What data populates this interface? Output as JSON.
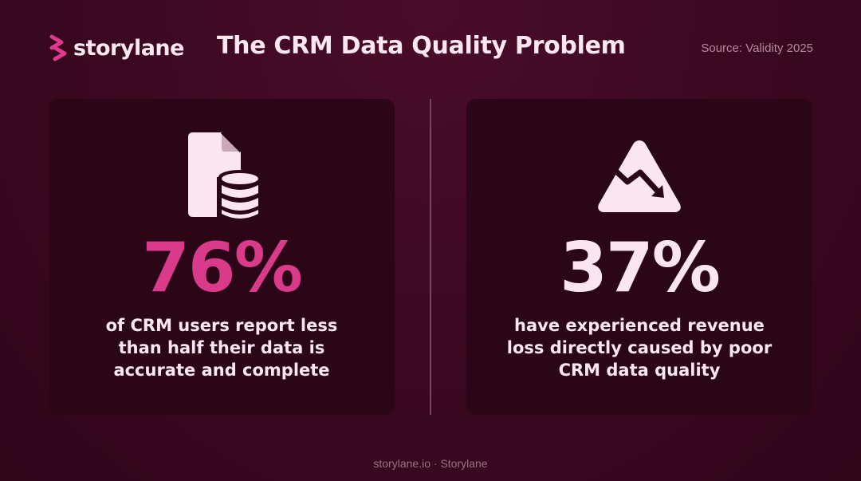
{
  "header": {
    "logo_text": "storylane",
    "title": "The CRM Data Quality Problem",
    "source": "Source: Validity 2025"
  },
  "cards": [
    {
      "icon": "document-database-icon",
      "stat": "76%",
      "stat_color": "#d93a8a",
      "description_lines": [
        "of CRM users report less",
        "than half their data is",
        "accurate and complete"
      ]
    },
    {
      "icon": "warning-trend-down-icon",
      "stat": "37%",
      "stat_color": "#fbe6f0",
      "description_lines": [
        "have experienced revenue",
        "loss directly caused by poor",
        "CRM data quality"
      ]
    }
  ],
  "footer": {
    "text": "storylane.io · Storylane"
  },
  "colors": {
    "background": "#3a0820",
    "card": "#2a0616",
    "accent": "#d93a8a",
    "text": "#fde8f2"
  }
}
